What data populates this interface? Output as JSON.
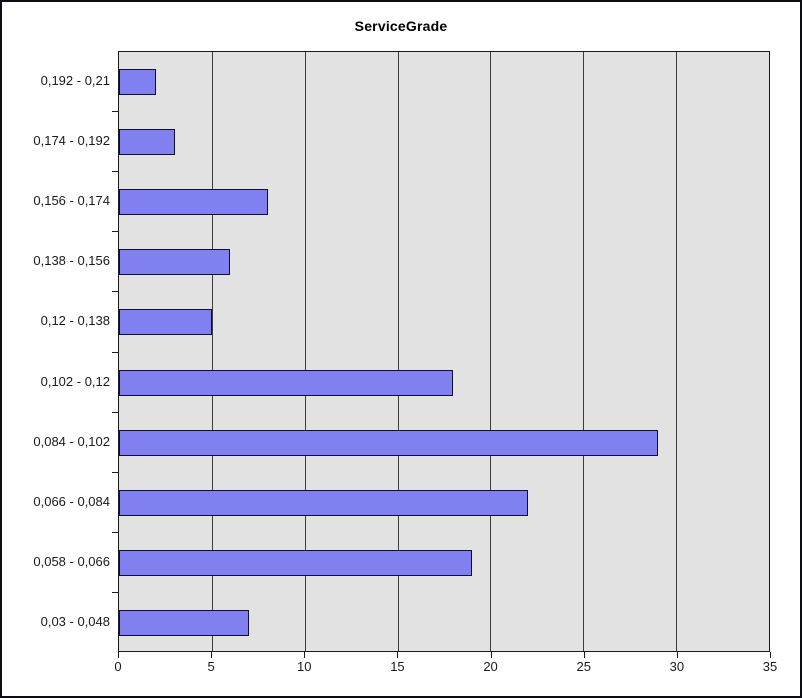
{
  "window": {
    "background": "#ffffff",
    "border_color": "#0c0c14"
  },
  "chart_data": {
    "type": "bar",
    "orientation": "horizontal",
    "title": "ServiceGrade",
    "categories": [
      "0,192 - 0,21",
      "0,174 - 0,192",
      "0,156 - 0,174",
      "0,138 - 0,156",
      "0,12 - 0,138",
      "0,102 - 0,12",
      "0,084 - 0,102",
      "0,066 - 0,084",
      "0,058 - 0,066",
      "0,03 - 0,048"
    ],
    "values": [
      2,
      3,
      8,
      6,
      5,
      18,
      29,
      22,
      19,
      7
    ],
    "xlabel": "",
    "ylabel": "",
    "xlim": [
      0,
      35
    ],
    "x_ticks": [
      0,
      5,
      10,
      15,
      20,
      25,
      30,
      35
    ],
    "grid": true,
    "legend": false,
    "colors": {
      "bar_fill": "#8080f0",
      "bar_border": "#10102e",
      "plot_bg": "#e2e2e2",
      "gridline": "#3c3c3c",
      "axis": "#1a1a1a",
      "text": "#1a1a1a"
    }
  }
}
